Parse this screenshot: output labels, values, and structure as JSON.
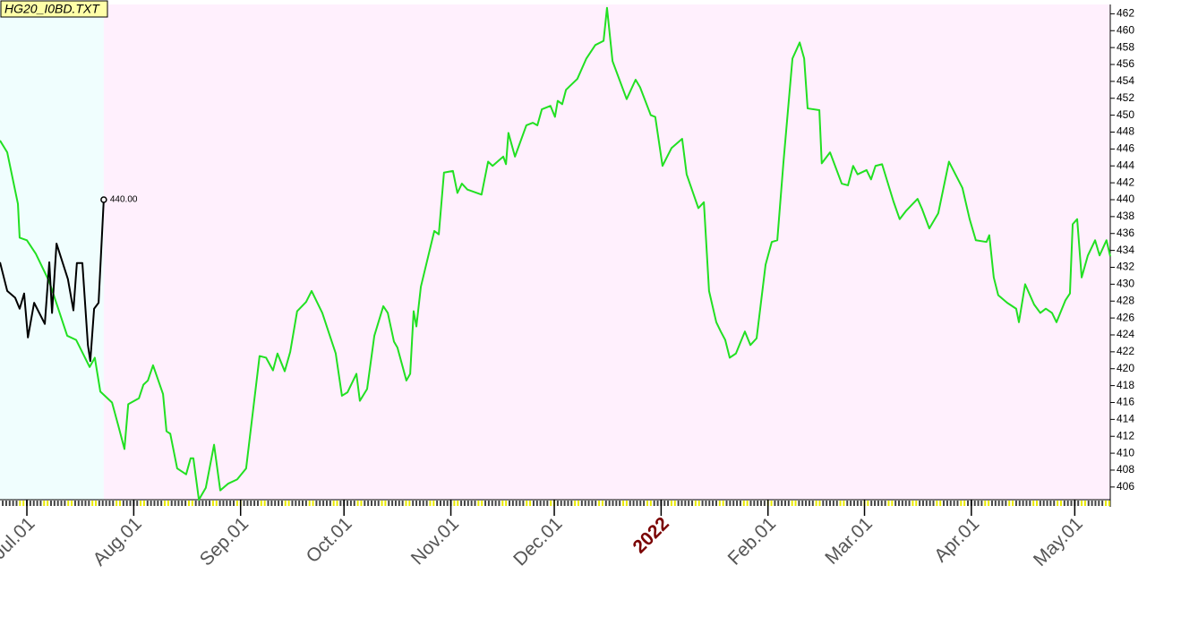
{
  "chart_data": {
    "type": "line",
    "title": "HG20_I0BD.TXT",
    "xlim": [
      -7.8,
      314.3
    ],
    "ylim": [
      404.5,
      463.1
    ],
    "xticks": [
      {
        "value": 0,
        "label": "Jul.01"
      },
      {
        "value": 31,
        "label": "Aug.01"
      },
      {
        "value": 62,
        "label": "Sep.01"
      },
      {
        "value": 92,
        "label": "Oct.01"
      },
      {
        "value": 123,
        "label": "Nov.01"
      },
      {
        "value": 153,
        "label": "Dec.01"
      },
      {
        "value": 184,
        "label": "2022"
      },
      {
        "value": 215,
        "label": "Feb.01"
      },
      {
        "value": 243,
        "label": "Mar.01"
      },
      {
        "value": 274,
        "label": "Apr.01"
      },
      {
        "value": 304,
        "label": "May.01"
      }
    ],
    "yticks": [
      406,
      408,
      410,
      412,
      414,
      416,
      418,
      420,
      422,
      424,
      426,
      428,
      430,
      432,
      434,
      436,
      438,
      440,
      442,
      444,
      446,
      448,
      450,
      452,
      454,
      456,
      458,
      460,
      462
    ],
    "series": [
      {
        "color": "#22e022",
        "x": [
          -7.8,
          -5.7,
          -2.6,
          -2.1,
          0,
          2.6,
          6.5,
          11.7,
          14.3,
          18.2,
          19.7,
          21.3,
          24.7,
          26.5,
          28.3,
          29.4,
          32.5,
          33.8,
          35.1,
          36.6,
          39.5,
          40.5,
          41.6,
          43.6,
          46.2,
          47.5,
          48.3,
          49.9,
          51.9,
          54.3,
          56.1,
          58.4,
          61.0,
          63.6,
          67.5,
          69.4,
          71.4,
          72.7,
          74.8,
          76.4,
          78.4,
          81.0,
          82.6,
          85.7,
          89.6,
          91.4,
          93.0,
          95.6,
          96.6,
          98.7,
          100.8,
          103.4,
          104.7,
          106.5,
          107.5,
          110.1,
          111.2,
          112.2,
          113.0,
          114.3,
          118.2,
          119.5,
          121.0,
          123.6,
          124.9,
          126.2,
          127.8,
          131.9,
          133.8,
          135.1,
          138.2,
          139.0,
          139.7,
          141.6,
          144.9,
          146.8,
          148.1,
          149.4,
          151.9,
          153.2,
          154.0,
          155.3,
          156.4,
          159.7,
          162.3,
          164.9,
          167.3,
          168.3,
          169.9,
          174.0,
          176.6,
          177.9,
          181.0,
          182.3,
          184.4,
          187.0,
          190.1,
          191.4,
          194.8,
          196.4,
          197.9,
          200.0,
          201.3,
          202.6,
          203.9,
          205.7,
          208.3,
          209.9,
          211.7,
          214.3,
          216.1,
          217.7,
          219.5,
          222.1,
          224.2,
          225.5,
          226.5,
          229.9,
          230.6,
          233.0,
          236.4,
          238.2,
          239.7,
          241.0,
          243.6,
          244.9,
          246.2,
          248.1,
          251.4,
          253.2,
          255.1,
          258.4,
          259.7,
          261.8,
          264.4,
          267.5,
          271.4,
          273.5,
          275.3,
          278.4,
          279.2,
          280.5,
          281.8,
          284.4,
          287.0,
          287.8,
          289.6,
          292.2,
          294.0,
          295.6,
          297.4,
          298.7,
          301.3,
          302.6,
          303.4,
          304.7,
          306.0,
          307.8,
          309.9,
          311.2,
          313.2,
          314.3
        ],
        "values": [
          447.0,
          445.6,
          439.5,
          435.5,
          435.2,
          433.6,
          430.3,
          423.9,
          423.4,
          420.2,
          421.3,
          417.3,
          416.0,
          413.3,
          410.5,
          415.8,
          416.5,
          418.1,
          418.6,
          420.4,
          417.0,
          412.6,
          412.3,
          408.2,
          407.5,
          409.4,
          409.4,
          404.5,
          405.9,
          411.0,
          405.6,
          406.4,
          406.9,
          408.2,
          421.5,
          421.3,
          419.8,
          421.8,
          419.7,
          422.0,
          426.8,
          427.9,
          429.2,
          426.6,
          421.8,
          416.8,
          417.2,
          419.4,
          416.2,
          417.6,
          423.9,
          427.4,
          426.6,
          423.2,
          422.5,
          418.6,
          419.4,
          426.8,
          425.0,
          429.7,
          436.3,
          435.9,
          443.2,
          443.4,
          440.8,
          441.9,
          441.2,
          440.6,
          444.5,
          444.0,
          445.1,
          444.2,
          447.9,
          445.1,
          448.8,
          449.1,
          448.8,
          450.7,
          451.1,
          449.8,
          451.7,
          451.3,
          453.0,
          454.3,
          456.7,
          458.3,
          458.8,
          462.7,
          456.4,
          451.9,
          454.2,
          453.3,
          450.0,
          449.8,
          444.0,
          446.1,
          447.2,
          443.0,
          439.0,
          439.7,
          429.2,
          425.5,
          424.4,
          423.4,
          421.3,
          421.8,
          424.4,
          422.8,
          423.6,
          432.3,
          435.0,
          435.2,
          444.5,
          456.7,
          458.6,
          456.7,
          450.8,
          450.6,
          444.3,
          445.6,
          441.9,
          441.7,
          444.0,
          443.0,
          443.5,
          442.4,
          444.0,
          444.2,
          439.8,
          437.7,
          438.7,
          440.1,
          438.9,
          436.6,
          438.4,
          444.5,
          441.4,
          437.7,
          435.2,
          435.0,
          435.8,
          430.8,
          428.7,
          427.8,
          427.1,
          425.5,
          430.0,
          427.6,
          426.6,
          427.1,
          426.6,
          425.5,
          428.1,
          428.9,
          437.1,
          437.7,
          430.8,
          433.4,
          435.2,
          433.4,
          435.2,
          433.3
        ]
      },
      {
        "color": "#000000",
        "x": [
          -7.8,
          -5.7,
          -3.4,
          -2.1,
          -0.8,
          0.3,
          2.1,
          5.2,
          6.5,
          7.3,
          8.6,
          11.9,
          13.5,
          14.5,
          16.1,
          17.7,
          18.4,
          19.5,
          20.8,
          22.3
        ],
        "values": [
          432.6,
          429.2,
          428.4,
          427.1,
          428.9,
          423.7,
          427.8,
          425.3,
          432.6,
          426.6,
          434.8,
          430.6,
          426.9,
          432.5,
          432.5,
          422.8,
          420.9,
          427.1,
          427.8,
          440.0
        ],
        "value_labels": [
          null,
          null,
          null,
          null,
          null,
          null,
          null,
          null,
          null,
          null,
          null,
          null,
          null,
          null,
          null,
          null,
          null,
          null,
          null,
          "440.00"
        ]
      }
    ]
  }
}
